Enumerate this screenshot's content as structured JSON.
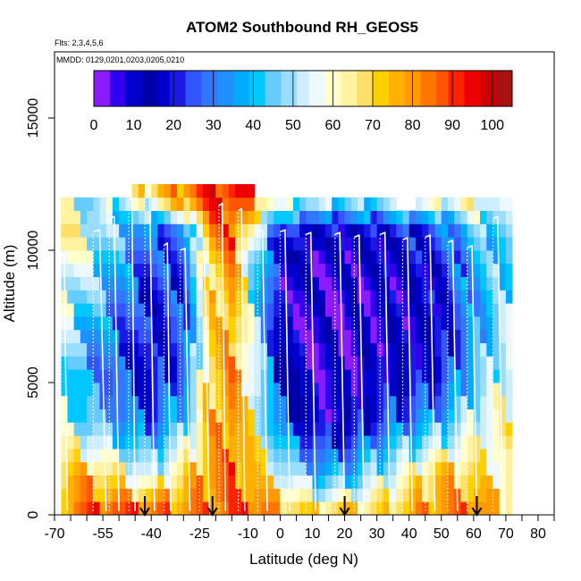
{
  "chart_data": {
    "type": "heatmap",
    "title": "ATOM2 Southbound RH_GEOS5",
    "flights_label": "Flts: 2,3,4,5,6",
    "dates_label": "MMDD: 0129,0201,0203,0205,0210",
    "xlabel": "Latitude (deg N)",
    "ylabel": "Altitude (m)",
    "xlim": [
      -70,
      85
    ],
    "ylim": [
      0,
      17500
    ],
    "x_ticks": [
      -70,
      -55,
      -40,
      -25,
      -10,
      0,
      10,
      20,
      30,
      40,
      50,
      60,
      70,
      80
    ],
    "x_minor_ticks": [
      -65,
      -60,
      -50,
      -45,
      -35,
      -30,
      -20,
      -15,
      -5,
      5,
      15,
      25,
      35,
      45,
      55,
      65,
      75,
      85
    ],
    "y_ticks": [
      0,
      5000,
      10000,
      15000
    ],
    "colorbar": {
      "range": [
        0,
        105
      ],
      "ticks": [
        0,
        10,
        20,
        30,
        40,
        50,
        60,
        70,
        80,
        90,
        100
      ],
      "colors": [
        "#8b1aff",
        "#3300ee",
        "#0000cc",
        "#0000a8",
        "#0000cc",
        "#1a1ae6",
        "#3355ff",
        "#3377ff",
        "#1e90ff",
        "#00aaff",
        "#00c8ff",
        "#66ccff",
        "#99ddff",
        "#cceeff",
        "#eef8ff",
        "#ffffcc",
        "#fff2a0",
        "#ffe066",
        "#ffd000",
        "#ffb000",
        "#ff9900",
        "#ff7700",
        "#ff5500",
        "#ff2200",
        "#ee0000",
        "#cc0000",
        "#aa1111"
      ]
    },
    "arrows_latitude": [
      -42,
      -21,
      20,
      61
    ],
    "lat_bins": [
      -68,
      -66,
      -64,
      -62,
      -60,
      -58,
      -56,
      -54,
      -52,
      -50,
      -48,
      -46,
      -44,
      -42,
      -40,
      -38,
      -36,
      -34,
      -32,
      -30,
      -28,
      -26,
      -24,
      -22,
      -20,
      -18,
      -16,
      -14,
      -12,
      -10,
      -8,
      -6,
      -4,
      -2,
      0,
      2,
      4,
      6,
      8,
      10,
      12,
      14,
      16,
      18,
      20,
      22,
      24,
      26,
      28,
      30,
      32,
      34,
      36,
      38,
      40,
      42,
      44,
      46,
      48,
      50,
      52,
      54,
      56,
      58,
      60,
      62,
      64,
      66,
      68,
      70
    ],
    "alt_bins": [
      0,
      500,
      1000,
      1500,
      2000,
      2500,
      3000,
      3500,
      4000,
      4500,
      5000,
      5500,
      6000,
      6500,
      7000,
      7500,
      8000,
      8500,
      9000,
      9500,
      10000,
      10500,
      11000,
      11500,
      12000
    ],
    "rh_profile": {
      "lat": [
        -70,
        -60,
        -50,
        -40,
        -30,
        -22,
        -15,
        -8,
        0,
        10,
        20,
        30,
        40,
        50,
        60,
        70
      ],
      "values": [
        [
          82,
          88,
          92,
          90,
          84,
          86,
          88,
          88,
          80,
          72,
          74,
          72,
          78,
          82,
          86,
          72
        ],
        [
          72,
          75,
          64,
          52,
          70,
          80,
          84,
          76,
          56,
          40,
          38,
          50,
          62,
          74,
          70,
          62
        ],
        [
          58,
          44,
          34,
          26,
          42,
          74,
          82,
          62,
          28,
          14,
          12,
          24,
          30,
          38,
          54,
          62
        ],
        [
          50,
          34,
          24,
          16,
          26,
          70,
          80,
          56,
          18,
          8,
          6,
          12,
          14,
          18,
          40,
          56
        ],
        [
          58,
          42,
          30,
          18,
          24,
          68,
          78,
          48,
          14,
          6,
          6,
          10,
          12,
          14,
          34,
          48
        ],
        [
          66,
          52,
          36,
          24,
          24,
          70,
          80,
          46,
          14,
          8,
          8,
          10,
          14,
          18,
          38,
          44
        ],
        [
          72,
          56,
          42,
          28,
          30,
          82,
          88,
          56,
          24,
          16,
          16,
          18,
          22,
          28,
          44,
          46
        ],
        [
          60,
          44,
          52,
          70,
          84,
          92,
          94,
          84,
          60,
          56,
          52,
          54,
          58,
          62,
          66,
          50
        ]
      ],
      "alt_levels": [
        0,
        1500,
        3500,
        5500,
        7500,
        9500,
        10800,
        12000
      ]
    },
    "profiles": [
      {
        "lat": [
          -68,
          -66
        ],
        "alt_top": 9800
      },
      {
        "lat": [
          -58,
          -54
        ],
        "alt_top": 10700
      },
      {
        "lat": [
          -53,
          -50
        ],
        "alt_top": 11200
      },
      {
        "lat": [
          -47,
          -45
        ],
        "alt_top": 11900
      },
      {
        "lat": [
          -42,
          -39
        ],
        "alt_top": 12200
      },
      {
        "lat": [
          -36,
          -34
        ],
        "alt_top": 10200
      },
      {
        "lat": [
          -31,
          -28
        ],
        "alt_top": 10000
      },
      {
        "lat": [
          -25,
          -22
        ],
        "alt_top": 9800
      },
      {
        "lat": [
          -19,
          -17
        ],
        "alt_top": 11700
      },
      {
        "lat": [
          -13,
          -11
        ],
        "alt_top": 11500
      },
      {
        "lat": [
          -7,
          -4
        ],
        "alt_top": 10700
      },
      {
        "lat": [
          0,
          3
        ],
        "alt_top": 10700
      },
      {
        "lat": [
          8,
          11
        ],
        "alt_top": 10600
      },
      {
        "lat": [
          17,
          20
        ],
        "alt_top": 10600
      },
      {
        "lat": [
          23,
          26
        ],
        "alt_top": 10500
      },
      {
        "lat": [
          31,
          34
        ],
        "alt_top": 10600
      },
      {
        "lat": [
          38,
          41
        ],
        "alt_top": 10400
      },
      {
        "lat": [
          45,
          48
        ],
        "alt_top": 10500
      },
      {
        "lat": [
          52,
          55
        ],
        "alt_top": 10300
      },
      {
        "lat": [
          58,
          61
        ],
        "alt_top": 10100
      },
      {
        "lat": [
          66,
          69
        ],
        "alt_top": 11200
      }
    ]
  }
}
